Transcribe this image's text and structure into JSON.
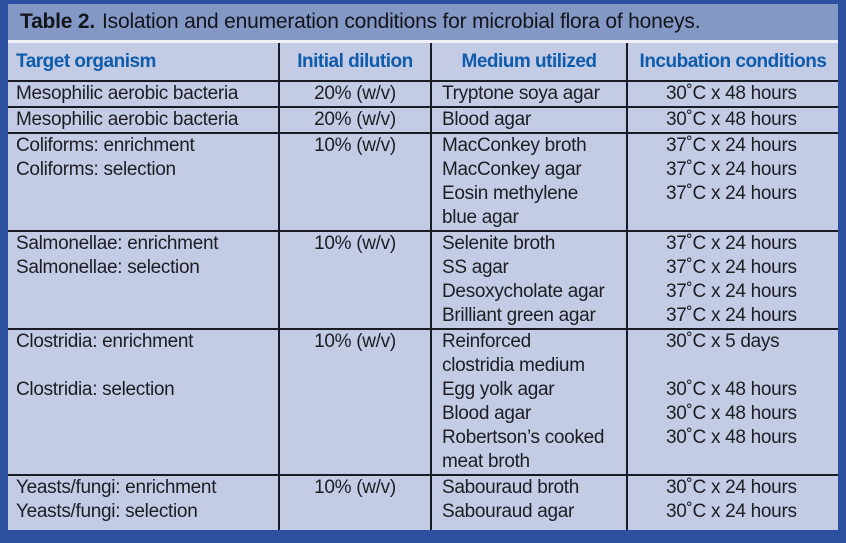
{
  "title": {
    "prefix": "Table 2.",
    "rest": "Isolation and enumeration conditions for microbial flora of honeys."
  },
  "table": {
    "columns": [
      "Target organism",
      "Initial dilution",
      "Medium utilized",
      "Incubation conditions"
    ],
    "sections": [
      {
        "organism": [
          "Mesophilic aerobic bacteria"
        ],
        "dilution": "20% (w/v)",
        "medium": [
          "Tryptone soya agar"
        ],
        "conditions": [
          "30˚C x 48 hours"
        ]
      },
      {
        "organism": [
          "Mesophilic aerobic bacteria"
        ],
        "dilution": "20% (w/v)",
        "medium": [
          "Blood agar"
        ],
        "conditions": [
          "30˚C x 48 hours"
        ]
      },
      {
        "organism": [
          "Coliforms: enrichment",
          "Coliforms: selection"
        ],
        "dilution": "10% (w/v)",
        "medium": [
          "MacConkey broth",
          "MacConkey agar",
          "Eosin methylene",
          "blue agar"
        ],
        "conditions": [
          "37˚C x 24 hours",
          "37˚C x 24 hours",
          "37˚C x 24 hours",
          ""
        ]
      },
      {
        "organism": [
          "Salmonellae: enrichment",
          "Salmonellae: selection"
        ],
        "dilution": "10% (w/v)",
        "medium": [
          "Selenite broth",
          "SS agar",
          "Desoxycholate agar",
          "Brilliant green agar"
        ],
        "conditions": [
          "37˚C x 24 hours",
          "37˚C x 24 hours",
          "37˚C x 24 hours",
          "37˚C x 24 hours"
        ]
      },
      {
        "organism": [
          "Clostridia: enrichment",
          "",
          "Clostridia: selection"
        ],
        "dilution": "10% (w/v)",
        "medium": [
          "Reinforced",
          "clostridia medium",
          "Egg yolk agar",
          "Blood agar",
          "Robertson’s cooked",
          "meat broth"
        ],
        "conditions": [
          "30˚C x 5 days",
          "",
          "30˚C x 48 hours",
          "30˚C x 48 hours",
          "30˚C x 48 hours",
          ""
        ]
      },
      {
        "organism": [
          "Yeasts/fungi: enrichment",
          "Yeasts/fungi: selection"
        ],
        "dilution": "10% (w/v)",
        "medium": [
          "Sabouraud broth",
          "Sabouraud agar"
        ],
        "conditions": [
          "30˚C x 24 hours",
          "30˚C x 24 hours"
        ]
      }
    ]
  },
  "colors": {
    "frame_border": "#2c4fa0",
    "title_bar_bg": "#8398c5",
    "table_bg": "#c3cbe5",
    "header_text": "#0e5cab",
    "rule_line": "#1b1b26",
    "body_text": "#1d1d24",
    "separator": "#eef0f7"
  }
}
